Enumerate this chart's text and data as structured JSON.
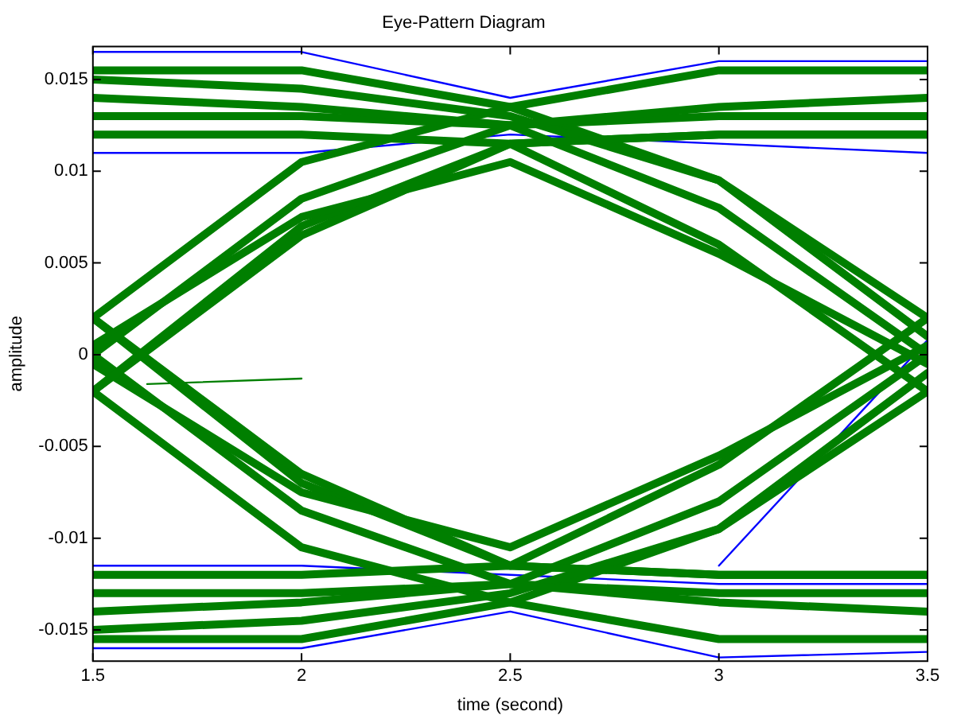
{
  "chart_data": {
    "type": "line",
    "title": "Eye-Pattern Diagram",
    "xlabel": "time (second)",
    "ylabel": "amplitude",
    "x": [
      1.5,
      2,
      2.5,
      3,
      3.5
    ],
    "xlim": [
      1.5,
      3.5
    ],
    "xticks": [
      1.5,
      2,
      2.5,
      3,
      3.5
    ],
    "ylim": [
      -0.0167,
      0.0168
    ],
    "yticks": [
      -0.015,
      -0.01,
      -0.005,
      0,
      0.005,
      0.01,
      0.015
    ],
    "grid": false,
    "legend": false,
    "marker": "none",
    "line_style": "solid",
    "series": [
      {
        "color": "#007f00",
        "values": [
          0.014,
          0.0135,
          0.0125,
          0.0135,
          0.014
        ]
      },
      {
        "color": "#007f00",
        "values": [
          0.0155,
          0.0155,
          0.0135,
          0.0155,
          0.0155
        ]
      },
      {
        "color": "#007f00",
        "values": [
          0.012,
          0.012,
          0.0115,
          0.012,
          0.012
        ]
      },
      {
        "color": "#007f00",
        "values": [
          0.013,
          0.013,
          0.0125,
          0.008,
          0.0
        ]
      },
      {
        "color": "#007f00",
        "values": [
          0.015,
          0.0145,
          0.013,
          0.0095,
          0.002
        ]
      },
      {
        "color": "#007f00",
        "values": [
          0.0,
          0.0085,
          0.0125,
          0.013,
          0.013
        ]
      },
      {
        "color": "#007f00",
        "values": [
          -0.002,
          0.0065,
          0.0115,
          0.012,
          0.012
        ]
      },
      {
        "color": "#007f00",
        "values": [
          0.0005,
          0.0075,
          0.0105,
          0.0055,
          -0.0005
        ]
      },
      {
        "color": "#007f00",
        "values": [
          0.002,
          0.0105,
          0.0135,
          0.0095,
          0.001
        ]
      },
      {
        "color": "#007f00",
        "values": [
          -0.002,
          0.007,
          0.0115,
          0.006,
          -0.002
        ]
      },
      {
        "color": "#007f00",
        "values": [
          -0.014,
          -0.0135,
          -0.0125,
          -0.0135,
          -0.014
        ]
      },
      {
        "color": "#007f00",
        "values": [
          -0.0155,
          -0.0155,
          -0.0135,
          -0.0155,
          -0.0155
        ]
      },
      {
        "color": "#007f00",
        "values": [
          -0.012,
          -0.012,
          -0.0115,
          -0.012,
          -0.012
        ]
      },
      {
        "color": "#007f00",
        "values": [
          -0.013,
          -0.013,
          -0.0125,
          -0.008,
          0.0
        ]
      },
      {
        "color": "#007f00",
        "values": [
          -0.015,
          -0.0145,
          -0.013,
          -0.0095,
          -0.002
        ]
      },
      {
        "color": "#007f00",
        "values": [
          0.0,
          -0.0085,
          -0.0125,
          -0.013,
          -0.013
        ]
      },
      {
        "color": "#007f00",
        "values": [
          0.002,
          -0.0065,
          -0.0115,
          -0.012,
          -0.012
        ]
      },
      {
        "color": "#007f00",
        "values": [
          -0.0005,
          -0.0075,
          -0.0105,
          -0.0055,
          0.0005
        ]
      },
      {
        "color": "#007f00",
        "values": [
          -0.002,
          -0.0105,
          -0.0135,
          -0.0095,
          -0.001
        ]
      },
      {
        "color": "#007f00",
        "values": [
          0.002,
          -0.007,
          -0.0115,
          -0.006,
          0.002
        ]
      },
      {
        "color": "#007f00",
        "x": [
          1.63,
          2
        ],
        "values": [
          -0.0016,
          -0.0013
        ]
      },
      {
        "color": "#0000ff",
        "values": [
          0.0165,
          0.0165,
          0.014,
          0.016,
          0.016
        ]
      },
      {
        "color": "#0000ff",
        "values": [
          0.011,
          0.011,
          0.012,
          0.0115,
          0.011
        ]
      },
      {
        "color": "#0000ff",
        "values": [
          -0.0115,
          -0.0115,
          -0.012,
          -0.0125,
          -0.0125
        ]
      },
      {
        "color": "#0000ff",
        "values": [
          -0.016,
          -0.016,
          -0.014,
          -0.0165,
          -0.0162
        ]
      },
      {
        "color": "#0000ff",
        "values": [
          null,
          null,
          null,
          -0.0115,
          0.0008
        ]
      }
    ]
  }
}
